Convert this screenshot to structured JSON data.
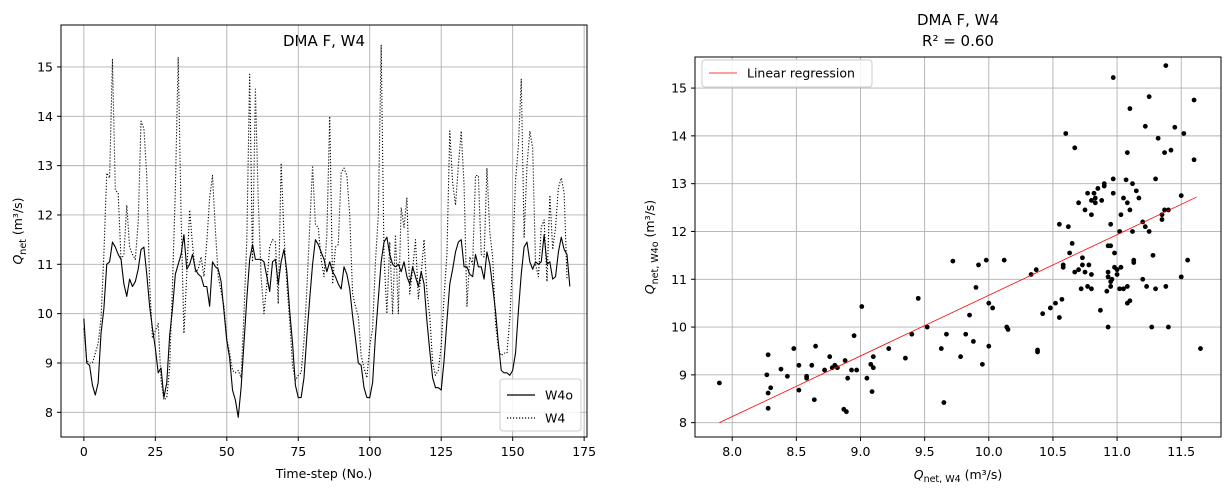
{
  "chart_data": [
    {
      "type": "line",
      "title": "DMA F, W4",
      "xlabel_text": "Time-step (No.)",
      "ylabel_base": "Q",
      "ylabel_sub": "net",
      "ylabel_unit": " (m³/s)",
      "xlim": [
        -8,
        176
      ],
      "ylim": [
        7.5,
        15.85
      ],
      "xticks": [
        0,
        25,
        50,
        75,
        100,
        125,
        150,
        175
      ],
      "yticks": [
        8,
        9,
        10,
        11,
        12,
        13,
        14,
        15
      ],
      "grid": true,
      "legend_position": "lower right",
      "series": [
        {
          "name": "W4o",
          "style": "solid",
          "color": "#000000",
          "values": [
            9.9,
            9.0,
            8.95,
            8.55,
            8.35,
            8.6,
            9.6,
            10.1,
            11.0,
            11.05,
            11.45,
            11.35,
            11.2,
            11.1,
            10.6,
            10.35,
            10.7,
            10.55,
            10.65,
            10.9,
            11.3,
            11.35,
            10.8,
            10.15,
            9.7,
            9.3,
            8.8,
            8.9,
            8.3,
            8.6,
            9.55,
            10.1,
            10.8,
            11.0,
            11.2,
            11.6,
            10.9,
            11.0,
            11.2,
            10.9,
            10.8,
            10.75,
            10.55,
            10.55,
            10.15,
            11.05,
            10.95,
            10.9,
            10.65,
            10.05,
            9.45,
            9.1,
            8.45,
            8.25,
            7.9,
            8.5,
            9.4,
            10.3,
            11.1,
            11.4,
            11.1,
            11.1,
            11.1,
            11.05,
            10.75,
            10.45,
            11.05,
            11.1,
            10.6,
            11.05,
            11.3,
            10.85,
            10.05,
            9.4,
            8.55,
            8.3,
            8.3,
            8.7,
            9.55,
            10.3,
            11.0,
            11.5,
            11.4,
            11.25,
            11.1,
            10.85,
            11.05,
            10.85,
            10.75,
            10.6,
            10.5,
            10.95,
            10.8,
            10.5,
            9.95,
            9.5,
            9.0,
            8.95,
            8.5,
            8.3,
            8.3,
            8.6,
            9.55,
            10.3,
            11.05,
            11.45,
            11.55,
            11.2,
            11.0,
            10.95,
            11.0,
            10.85,
            11.05,
            10.75,
            10.6,
            10.95,
            10.75,
            10.55,
            10.85,
            10.6,
            9.85,
            9.25,
            8.7,
            8.5,
            8.5,
            8.45,
            9.05,
            9.85,
            10.6,
            10.9,
            11.25,
            11.45,
            11.5,
            10.95,
            10.95,
            10.8,
            10.75,
            11.2,
            10.95,
            10.95,
            10.7,
            11.25,
            11.0,
            10.55,
            10.05,
            9.4,
            8.85,
            8.8,
            8.8,
            8.75,
            8.85,
            9.2,
            10.05,
            10.8,
            11.35,
            11.45,
            11.05,
            10.9,
            11.05,
            11.0,
            11.05,
            11.6,
            11.0,
            11.05,
            10.7,
            10.75,
            11.25,
            11.55,
            11.3,
            11.2,
            10.55
          ]
        },
        {
          "name": "W4",
          "style": "dotted",
          "color": "#000000",
          "values": [
            9.7,
            9.05,
            9.0,
            9.0,
            9.2,
            9.4,
            9.9,
            11.2,
            12.85,
            12.75,
            15.15,
            12.5,
            12.45,
            11.1,
            11.2,
            12.2,
            11.35,
            11.2,
            11.1,
            11.85,
            13.9,
            13.75,
            12.8,
            10.6,
            9.5,
            9.65,
            9.8,
            8.65,
            8.25,
            8.3,
            8.9,
            10.6,
            12.5,
            15.2,
            12.0,
            9.6,
            10.8,
            12.1,
            11.4,
            10.85,
            10.9,
            11.15,
            10.75,
            11.45,
            12.35,
            12.8,
            11.7,
            10.75,
            10.45,
            10.15,
            9.5,
            9.2,
            8.85,
            8.8,
            8.85,
            8.7,
            10.0,
            11.5,
            14.85,
            11.05,
            14.55,
            12.3,
            10.75,
            10.0,
            10.6,
            11.35,
            11.5,
            11.45,
            10.2,
            13.05,
            11.6,
            10.6,
            9.85,
            8.95,
            8.65,
            8.75,
            8.8,
            9.45,
            10.5,
            11.75,
            13.0,
            11.8,
            11.75,
            11.1,
            10.75,
            11.6,
            14.0,
            10.6,
            11.35,
            11.4,
            12.85,
            12.95,
            12.8,
            12.0,
            10.4,
            10.15,
            9.95,
            9.15,
            8.9,
            8.7,
            9.35,
            9.7,
            11.05,
            12.0,
            15.45,
            11.15,
            10.0,
            11.45,
            10.0,
            11.6,
            10.0,
            12.15,
            11.75,
            12.35,
            10.4,
            10.9,
            11.5,
            10.3,
            10.8,
            11.5,
            10.45,
            9.95,
            9.0,
            8.75,
            8.85,
            9.35,
            10.35,
            11.2,
            13.7,
            12.65,
            12.2,
            13.0,
            13.7,
            12.6,
            10.15,
            11.15,
            11.0,
            12.8,
            12.8,
            11.2,
            11.15,
            12.95,
            11.65,
            11.15,
            9.8,
            9.3,
            9.15,
            9.2,
            9.2,
            9.9,
            11.1,
            12.7,
            13.4,
            14.75,
            11.55,
            13.0,
            13.7,
            13.35,
            11.0,
            10.75,
            11.75,
            11.9,
            10.65,
            12.4,
            11.3,
            11.75,
            12.55,
            12.75,
            12.45,
            10.7
          ]
        }
      ]
    },
    {
      "type": "scatter",
      "title": "DMA F, W4",
      "subtitle": "R² = 0.60",
      "xlabel_base": "Q",
      "xlabel_sub": "net, W4",
      "xlabel_unit": " (m³/s)",
      "ylabel_base": "Q",
      "ylabel_sub": "net, W4o",
      "ylabel_unit": " (m³/s)",
      "xlim": [
        7.71,
        11.81
      ],
      "ylim": [
        7.7,
        15.65
      ],
      "xticks": [
        "8.0",
        "8.5",
        "9.0",
        "9.5",
        "10.0",
        "10.5",
        "11.0",
        "11.5"
      ],
      "yticks": [
        8,
        9,
        10,
        11,
        12,
        13,
        14,
        15
      ],
      "grid": true,
      "legend_position": "upper left",
      "regression": {
        "name": "Linear regression",
        "color": "#ff0000",
        "x": [
          7.9,
          11.62
        ],
        "y": [
          8.0,
          12.72
        ]
      },
      "points": [
        [
          7.9,
          8.83
        ],
        [
          8.27,
          9.0
        ],
        [
          8.28,
          9.42
        ],
        [
          8.28,
          8.3
        ],
        [
          8.28,
          8.62
        ],
        [
          8.3,
          8.73
        ],
        [
          8.38,
          9.12
        ],
        [
          8.43,
          8.97
        ],
        [
          8.48,
          9.55
        ],
        [
          8.52,
          9.2
        ],
        [
          8.52,
          8.68
        ],
        [
          8.58,
          8.97
        ],
        [
          8.58,
          8.93
        ],
        [
          8.62,
          9.2
        ],
        [
          8.64,
          8.48
        ],
        [
          8.65,
          9.6
        ],
        [
          8.72,
          9.1
        ],
        [
          8.76,
          9.38
        ],
        [
          8.78,
          9.15
        ],
        [
          8.8,
          9.2
        ],
        [
          8.82,
          9.15
        ],
        [
          8.87,
          8.28
        ],
        [
          8.88,
          9.3
        ],
        [
          8.89,
          8.23
        ],
        [
          8.9,
          8.93
        ],
        [
          8.93,
          9.1
        ],
        [
          8.95,
          9.82
        ],
        [
          8.97,
          9.1
        ],
        [
          9.01,
          10.43
        ],
        [
          9.05,
          8.93
        ],
        [
          9.08,
          9.22
        ],
        [
          9.09,
          8.65
        ],
        [
          9.1,
          9.38
        ],
        [
          9.1,
          9.15
        ],
        [
          9.22,
          9.55
        ],
        [
          9.35,
          9.35
        ],
        [
          9.4,
          9.85
        ],
        [
          9.45,
          10.6
        ],
        [
          9.52,
          10.0
        ],
        [
          9.63,
          9.55
        ],
        [
          9.65,
          8.42
        ],
        [
          9.67,
          9.85
        ],
        [
          9.72,
          11.38
        ],
        [
          9.78,
          9.38
        ],
        [
          9.82,
          9.85
        ],
        [
          9.85,
          10.25
        ],
        [
          9.88,
          9.7
        ],
        [
          9.9,
          10.83
        ],
        [
          9.92,
          11.3
        ],
        [
          9.95,
          9.22
        ],
        [
          9.98,
          11.4
        ],
        [
          10.0,
          10.5
        ],
        [
          10.0,
          9.6
        ],
        [
          10.03,
          10.4
        ],
        [
          10.12,
          11.4
        ],
        [
          10.14,
          10.0
        ],
        [
          10.15,
          9.95
        ],
        [
          10.33,
          11.1
        ],
        [
          10.37,
          11.2
        ],
        [
          10.38,
          9.48
        ],
        [
          10.38,
          9.52
        ],
        [
          10.42,
          10.28
        ],
        [
          10.48,
          10.4
        ],
        [
          10.52,
          10.5
        ],
        [
          10.55,
          12.15
        ],
        [
          10.55,
          10.2
        ],
        [
          10.57,
          10.58
        ],
        [
          10.58,
          11.3
        ],
        [
          10.58,
          11.25
        ],
        [
          10.6,
          14.05
        ],
        [
          10.62,
          12.1
        ],
        [
          10.63,
          11.55
        ],
        [
          10.65,
          11.75
        ],
        [
          10.67,
          13.75
        ],
        [
          10.67,
          11.15
        ],
        [
          10.7,
          11.2
        ],
        [
          10.7,
          12.6
        ],
        [
          10.72,
          10.8
        ],
        [
          10.73,
          11.3
        ],
        [
          10.73,
          11.45
        ],
        [
          10.75,
          12.45
        ],
        [
          10.75,
          11.15
        ],
        [
          10.77,
          12.8
        ],
        [
          10.77,
          10.85
        ],
        [
          10.78,
          11.3
        ],
        [
          10.8,
          12.65
        ],
        [
          10.8,
          12.35
        ],
        [
          10.8,
          11.1
        ],
        [
          10.8,
          10.8
        ],
        [
          10.82,
          12.8
        ],
        [
          10.83,
          12.7
        ],
        [
          10.83,
          12.6
        ],
        [
          10.85,
          12.9
        ],
        [
          10.87,
          10.35
        ],
        [
          10.88,
          12.65
        ],
        [
          10.9,
          13.0
        ],
        [
          10.9,
          12.95
        ],
        [
          10.92,
          10.75
        ],
        [
          10.93,
          11.05
        ],
        [
          10.93,
          11.15
        ],
        [
          10.93,
          11.7
        ],
        [
          10.93,
          10.0
        ],
        [
          10.95,
          10.85
        ],
        [
          10.95,
          11.7
        ],
        [
          10.95,
          12.15
        ],
        [
          10.95,
          10.95
        ],
        [
          10.96,
          11.0
        ],
        [
          10.97,
          15.22
        ],
        [
          10.97,
          13.1
        ],
        [
          10.97,
          12.8
        ],
        [
          10.98,
          11.25
        ],
        [
          10.98,
          11.55
        ],
        [
          11.0,
          11.2
        ],
        [
          11.0,
          11.1
        ],
        [
          11.02,
          12.0
        ],
        [
          11.02,
          10.8
        ],
        [
          11.03,
          12.35
        ],
        [
          11.03,
          11.25
        ],
        [
          11.05,
          12.7
        ],
        [
          11.05,
          10.8
        ],
        [
          11.07,
          13.08
        ],
        [
          11.08,
          12.6
        ],
        [
          11.08,
          10.85
        ],
        [
          11.08,
          10.5
        ],
        [
          11.08,
          13.65
        ],
        [
          11.1,
          10.55
        ],
        [
          11.1,
          12.45
        ],
        [
          11.1,
          14.57
        ],
        [
          11.12,
          13.0
        ],
        [
          11.12,
          12.0
        ],
        [
          11.13,
          11.4
        ],
        [
          11.13,
          11.35
        ],
        [
          11.15,
          12.85
        ],
        [
          11.17,
          12.7
        ],
        [
          11.2,
          12.2
        ],
        [
          11.2,
          11.0
        ],
        [
          11.22,
          14.2
        ],
        [
          11.22,
          12.1
        ],
        [
          11.23,
          10.85
        ],
        [
          11.25,
          12.0
        ],
        [
          11.25,
          14.82
        ],
        [
          11.27,
          10.0
        ],
        [
          11.28,
          11.5
        ],
        [
          11.3,
          13.1
        ],
        [
          11.3,
          10.8
        ],
        [
          11.32,
          13.95
        ],
        [
          11.35,
          12.35
        ],
        [
          11.35,
          12.25
        ],
        [
          11.37,
          12.45
        ],
        [
          11.37,
          13.65
        ],
        [
          11.38,
          10.85
        ],
        [
          11.38,
          15.47
        ],
        [
          11.4,
          12.45
        ],
        [
          11.4,
          10.0
        ],
        [
          11.42,
          13.7
        ],
        [
          11.45,
          14.18
        ],
        [
          11.5,
          11.05
        ],
        [
          11.5,
          12.75
        ],
        [
          11.52,
          14.05
        ],
        [
          11.55,
          11.4
        ],
        [
          11.6,
          13.5
        ],
        [
          11.6,
          14.75
        ],
        [
          11.65,
          9.55
        ]
      ]
    }
  ]
}
